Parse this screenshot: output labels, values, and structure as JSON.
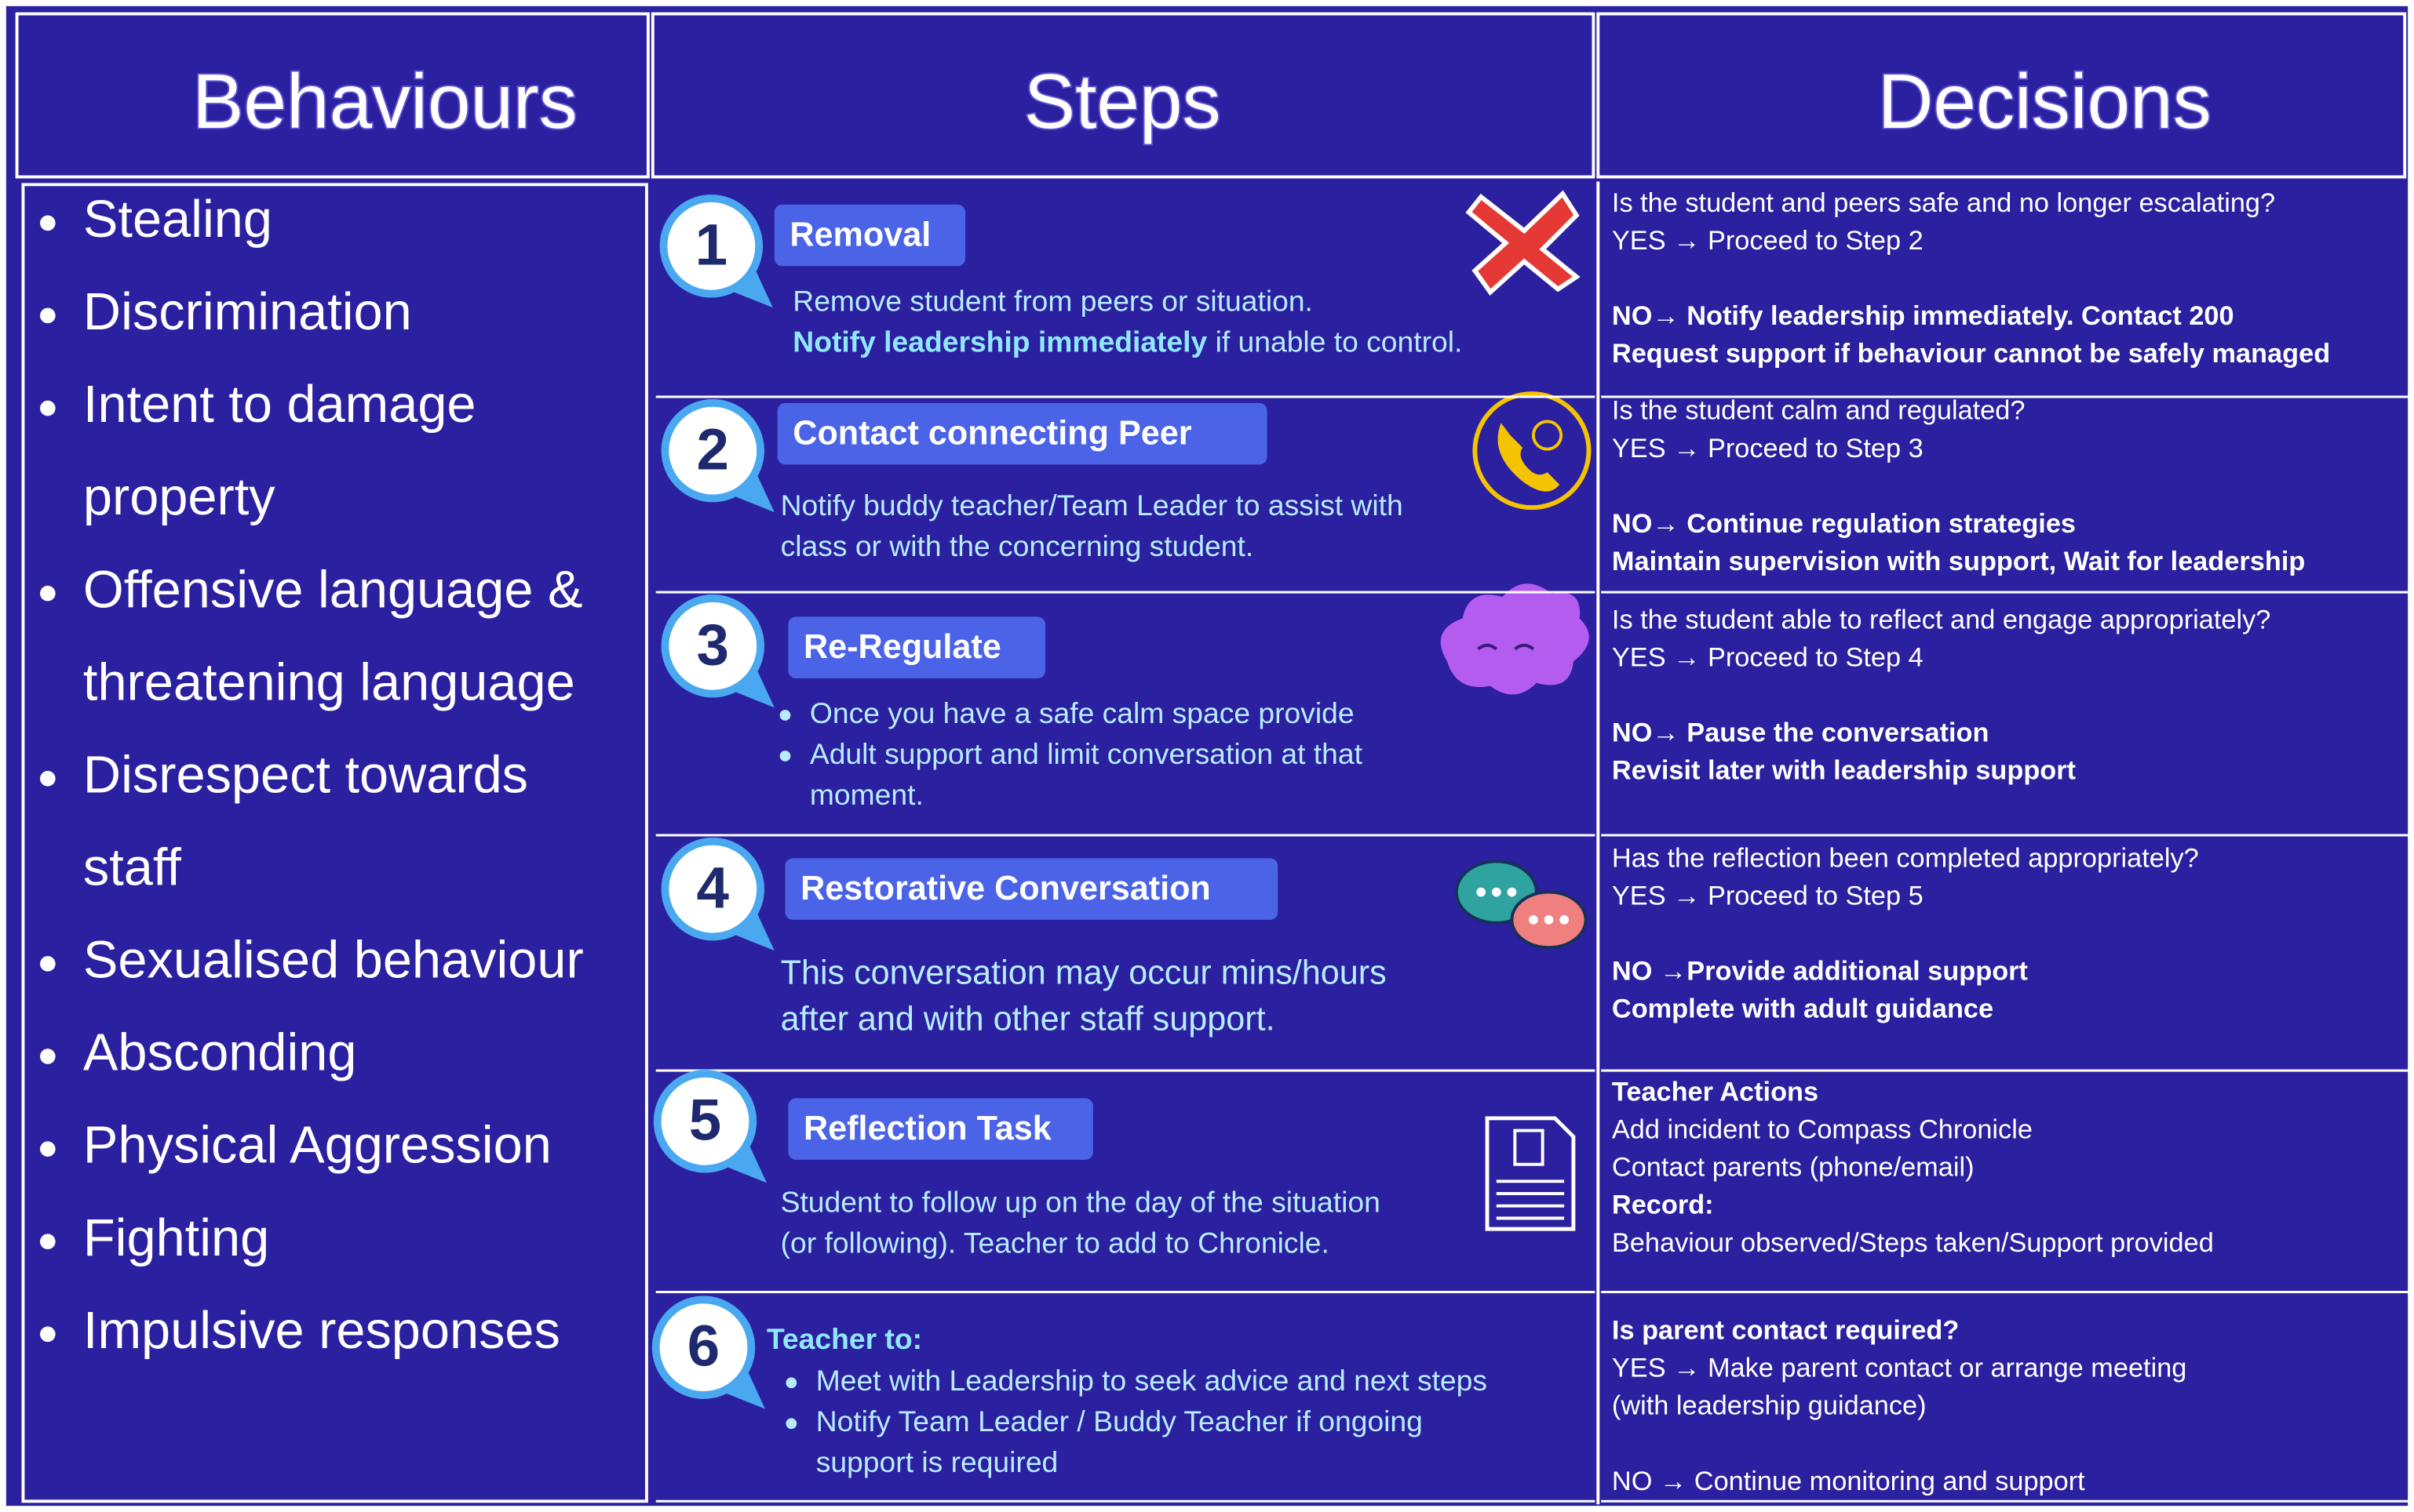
{
  "headers": [
    "Behaviours",
    "Steps",
    "Decisions"
  ],
  "behaviours": [
    [
      "Stealing"
    ],
    [
      "Discrimination"
    ],
    [
      "Intent to damage",
      "property"
    ],
    [
      "Offensive language &",
      "threatening language"
    ],
    [
      "Disrespect towards",
      "staff"
    ],
    [
      "Sexualised behaviour"
    ],
    [
      "Absconding"
    ],
    [
      "Physical Aggression"
    ],
    [
      "Fighting"
    ],
    [
      "Impulsive responses"
    ]
  ],
  "steps": [
    {
      "number": "1",
      "title": "Removal",
      "lines": [
        [
          {
            "text": "Remove student from peers or situation."
          }
        ],
        [
          {
            "strong": "Notify leadership immediately"
          },
          {
            "text": " if unable to control."
          }
        ]
      ]
    },
    {
      "number": "2",
      "title": "Contact connecting Peer",
      "lines": [
        [
          {
            "text": "Notify buddy teacher/Team Leader to assist with"
          }
        ],
        [
          {
            "text": "class or with the concerning student."
          }
        ]
      ]
    },
    {
      "number": "3",
      "title": "Re-Regulate",
      "bullets": [
        [
          "Once you have a safe calm space provide"
        ],
        [
          "Adult support and limit conversation at that",
          "moment."
        ]
      ]
    },
    {
      "number": "4",
      "title": "Restorative Conversation",
      "lines": [
        [
          {
            "text": "This conversation may occur mins/hours"
          }
        ],
        [
          {
            "text": "after and with other staff support."
          }
        ]
      ]
    },
    {
      "number": "5",
      "title": "Reflection Task",
      "lines": [
        [
          {
            "text": "Student to follow up on the day of the situation"
          }
        ],
        [
          {
            "text": "(or following). Teacher to add to Chronicle."
          }
        ]
      ]
    },
    {
      "number": "6",
      "heading": "Teacher to:",
      "bullets": [
        [
          "Meet with Leadership to seek advice and next steps"
        ],
        [
          "Notify Team Leader / Buddy Teacher if ongoing",
          "support is required"
        ]
      ]
    }
  ],
  "decisions": [
    [
      [
        {
          "text": "Is the student and peers safe  and no longer escalating?"
        },
        {
          "text": "YES → Proceed to Step 2"
        }
      ],
      [
        {
          "strong": "NO→ Notify leadership immediately. Contact 200"
        },
        {
          "strong": "Request support if behaviour cannot be safely managed"
        }
      ]
    ],
    [
      [
        {
          "text": "Is the student calm and regulated?"
        },
        {
          "text": "YES → Proceed to Step 3"
        }
      ],
      [
        {
          "strong": "NO→  Continue regulation strategies"
        },
        {
          "strong": "Maintain supervision with support, Wait for leadership"
        }
      ]
    ],
    [
      [
        {
          "text": "Is the student able to reflect and engage appropriately?"
        },
        {
          "text": "YES → Proceed to Step 4"
        }
      ],
      [
        {
          "strong": "NO→ Pause the conversation"
        },
        {
          "strong": "Revisit later with leadership support"
        }
      ]
    ],
    [
      [
        {
          "text": "Has the reflection been completed appropriately?"
        },
        {
          "text": "YES → Proceed to Step 5"
        }
      ],
      [
        {
          "strong": "NO →Provide additional support"
        },
        {
          "strong": "Complete with adult guidance"
        }
      ]
    ],
    [
      [
        {
          "strong": "Teacher Actions"
        },
        {
          "text": "Add incident to Compass Chronicle"
        },
        {
          "text": "Contact parents (phone/email)"
        },
        {
          "strong": "Record:"
        },
        {
          "text": "Behaviour observed/Steps taken/Support provided"
        }
      ]
    ],
    [
      [
        {
          "strong": "Is parent contact required?"
        },
        {
          "text": "YES → Make parent contact or arrange meeting"
        },
        {
          "text": "(with leadership guidance)"
        }
      ],
      [
        {
          "text": "NO → Continue monitoring and support"
        }
      ]
    ]
  ]
}
